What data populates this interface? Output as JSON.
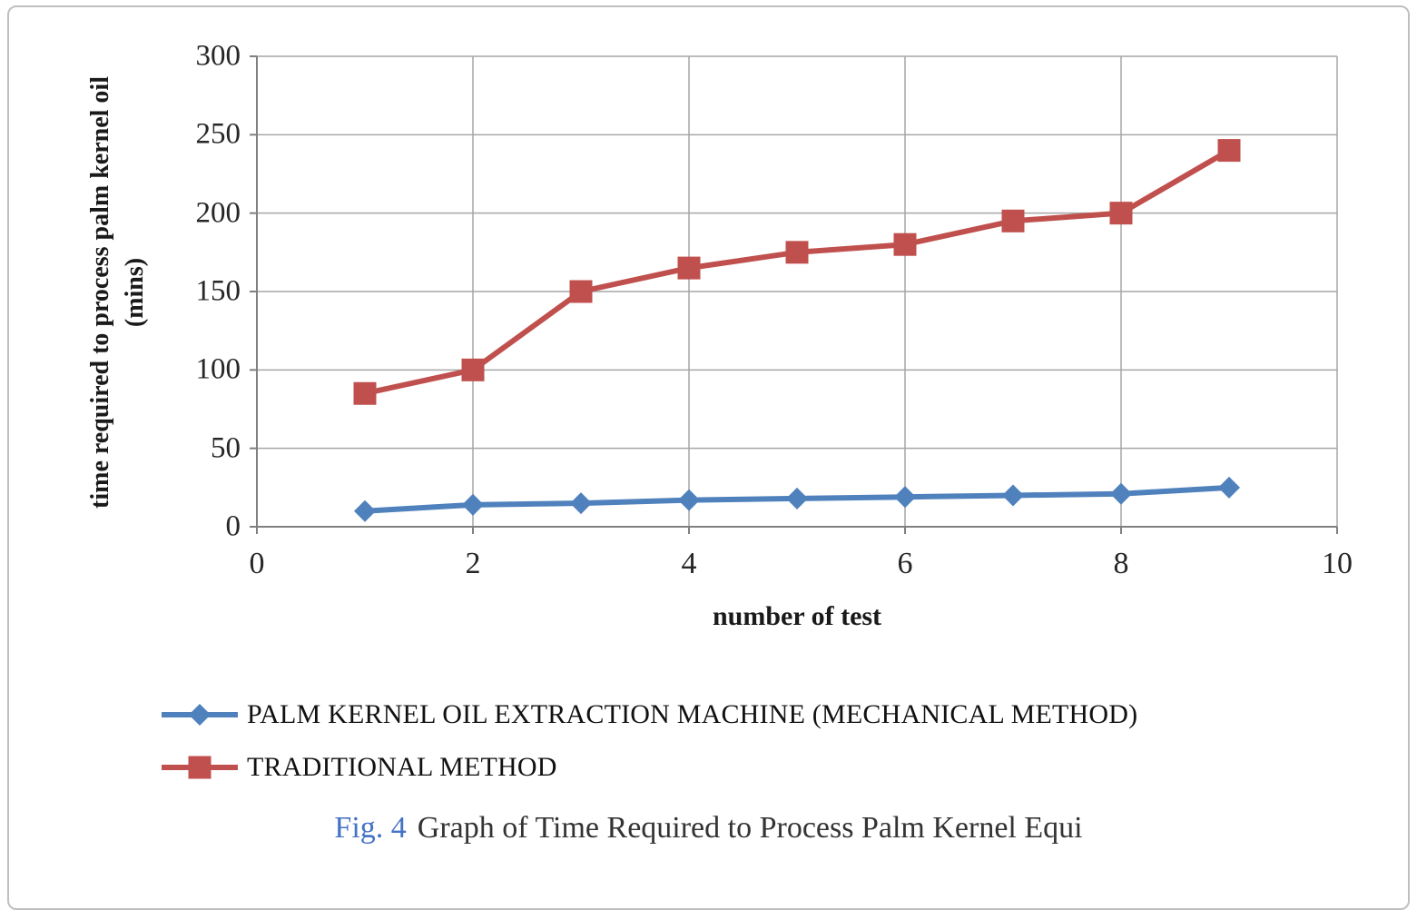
{
  "figure": {
    "caption_prefix": "Fig. 4",
    "caption_text": "Graph of Time Required to Process Palm Kernel Equi"
  },
  "chart_data": {
    "type": "line",
    "title": "",
    "xlabel": "number of test",
    "ylabel": "time required to process palm kernel oil (mins)",
    "ylabel_lines": [
      "time required to process palm kernel oil",
      "(mins)"
    ],
    "xlim": [
      0,
      10
    ],
    "ylim": [
      0,
      300
    ],
    "x_ticks": [
      0,
      2,
      4,
      6,
      8,
      10
    ],
    "y_ticks": [
      0,
      50,
      100,
      150,
      200,
      250,
      300
    ],
    "grid": true,
    "legend_position": "bottom-left",
    "x": [
      1,
      2,
      3,
      4,
      5,
      6,
      7,
      8,
      9
    ],
    "series": [
      {
        "name": "PALM KERNEL OIL EXTRACTION MACHINE (MECHANICAL METHOD)",
        "color": "#4F81BD",
        "marker": "diamond",
        "values": [
          10,
          14,
          15,
          17,
          18,
          19,
          20,
          21,
          25
        ]
      },
      {
        "name": "TRADITIONAL METHOD",
        "color": "#C0504D",
        "marker": "square",
        "values": [
          85,
          100,
          150,
          165,
          175,
          180,
          195,
          200,
          240
        ]
      }
    ],
    "grid_color": "#A6A6A6",
    "axis_color": "#808080"
  }
}
